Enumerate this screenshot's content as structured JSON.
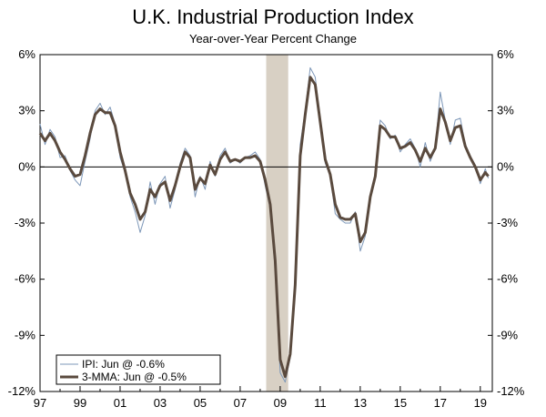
{
  "chart_data": {
    "type": "line",
    "title": "U.K. Industrial Production Index",
    "subtitle": "Year-over-Year Percent Change",
    "xlabel": "",
    "ylabel": "",
    "xlim": [
      1997,
      2019.6
    ],
    "ylim": [
      -12,
      6
    ],
    "x_ticks": [
      1997,
      1999,
      2001,
      2003,
      2005,
      2007,
      2009,
      2011,
      2013,
      2015,
      2017,
      2019
    ],
    "x_tick_labels": [
      "97",
      "99",
      "01",
      "03",
      "05",
      "07",
      "09",
      "11",
      "13",
      "15",
      "17",
      "19"
    ],
    "y_ticks": [
      6,
      3,
      0,
      -3,
      -6,
      -9,
      -12
    ],
    "y_tick_labels": [
      "6%",
      "3%",
      "0%",
      "-3%",
      "-6%",
      "-9%",
      "-12%"
    ],
    "recession_shading": [
      2008.3,
      2009.4
    ],
    "legend_position": "bottom-left",
    "grid": false,
    "series": [
      {
        "name": "IPI: Jun @ -0.6%",
        "color": "#7d97b8",
        "line_width": "thin",
        "x": [
          1997.0,
          1997.25,
          1997.5,
          1997.75,
          1998.0,
          1998.25,
          1998.5,
          1998.75,
          1999.0,
          1999.25,
          1999.5,
          1999.75,
          2000.0,
          2000.25,
          2000.5,
          2000.75,
          2001.0,
          2001.25,
          2001.5,
          2001.75,
          2002.0,
          2002.25,
          2002.5,
          2002.75,
          2003.0,
          2003.25,
          2003.5,
          2003.75,
          2004.0,
          2004.25,
          2004.5,
          2004.75,
          2005.0,
          2005.25,
          2005.5,
          2005.75,
          2006.0,
          2006.25,
          2006.5,
          2006.75,
          2007.0,
          2007.25,
          2007.5,
          2007.75,
          2008.0,
          2008.25,
          2008.5,
          2008.75,
          2009.0,
          2009.25,
          2009.5,
          2009.75,
          2010.0,
          2010.25,
          2010.5,
          2010.75,
          2011.0,
          2011.25,
          2011.5,
          2011.75,
          2012.0,
          2012.25,
          2012.5,
          2012.75,
          2013.0,
          2013.25,
          2013.5,
          2013.75,
          2014.0,
          2014.25,
          2014.5,
          2014.75,
          2015.0,
          2015.25,
          2015.5,
          2015.75,
          2016.0,
          2016.25,
          2016.5,
          2016.75,
          2017.0,
          2017.25,
          2017.5,
          2017.75,
          2018.0,
          2018.25,
          2018.5,
          2018.75,
          2019.0,
          2019.25,
          2019.4
        ],
        "values": [
          2.3,
          1.2,
          2.0,
          1.6,
          0.5,
          0.6,
          -0.2,
          -0.7,
          -1.0,
          0.3,
          1.5,
          3.0,
          3.4,
          2.8,
          3.2,
          2.3,
          0.5,
          -0.3,
          -1.6,
          -2.4,
          -3.5,
          -2.6,
          -0.8,
          -2.0,
          -0.9,
          -0.5,
          -2.2,
          -1.2,
          0.2,
          1.0,
          0.6,
          -1.6,
          -0.5,
          -1.2,
          0.3,
          -0.5,
          0.6,
          1.0,
          0.2,
          0.4,
          0.2,
          0.5,
          0.6,
          0.8,
          0.4,
          -1.0,
          -2.2,
          -5.5,
          -11.0,
          -11.5,
          -10.2,
          -6.0,
          1.2,
          3.0,
          5.3,
          4.8,
          2.5,
          0.2,
          -0.5,
          -2.5,
          -2.8,
          -3.0,
          -3.0,
          -2.4,
          -4.5,
          -3.7,
          -1.5,
          -0.5,
          2.5,
          2.2,
          1.5,
          1.7,
          0.8,
          1.2,
          1.5,
          1.0,
          0.0,
          1.3,
          0.3,
          1.0,
          4.0,
          2.5,
          1.2,
          2.5,
          2.6,
          1.2,
          0.6,
          0.1,
          -0.9,
          -0.1,
          -0.6
        ]
      },
      {
        "name": "3-MMA: Jun @ -0.5%",
        "color": "#5a4a3e",
        "line_width": "thick",
        "x": [
          1997.0,
          1997.25,
          1997.5,
          1997.75,
          1998.0,
          1998.25,
          1998.5,
          1998.75,
          1999.0,
          1999.25,
          1999.5,
          1999.75,
          2000.0,
          2000.25,
          2000.5,
          2000.75,
          2001.0,
          2001.25,
          2001.5,
          2001.75,
          2002.0,
          2002.25,
          2002.5,
          2002.75,
          2003.0,
          2003.25,
          2003.5,
          2003.75,
          2004.0,
          2004.25,
          2004.5,
          2004.75,
          2005.0,
          2005.25,
          2005.5,
          2005.75,
          2006.0,
          2006.25,
          2006.5,
          2006.75,
          2007.0,
          2007.25,
          2007.5,
          2007.75,
          2008.0,
          2008.25,
          2008.5,
          2008.75,
          2009.0,
          2009.25,
          2009.5,
          2009.75,
          2010.0,
          2010.25,
          2010.5,
          2010.75,
          2011.0,
          2011.25,
          2011.5,
          2011.75,
          2012.0,
          2012.25,
          2012.5,
          2012.75,
          2013.0,
          2013.25,
          2013.5,
          2013.75,
          2014.0,
          2014.25,
          2014.5,
          2014.75,
          2015.0,
          2015.25,
          2015.5,
          2015.75,
          2016.0,
          2016.25,
          2016.5,
          2016.75,
          2017.0,
          2017.25,
          2017.5,
          2017.75,
          2018.0,
          2018.25,
          2018.5,
          2018.75,
          2019.0,
          2019.25,
          2019.4
        ],
        "values": [
          1.8,
          1.4,
          1.8,
          1.4,
          0.8,
          0.4,
          -0.1,
          -0.5,
          -0.4,
          0.6,
          1.8,
          2.8,
          3.1,
          2.9,
          2.9,
          2.2,
          0.8,
          -0.2,
          -1.4,
          -2.0,
          -2.8,
          -2.4,
          -1.2,
          -1.6,
          -1.0,
          -0.8,
          -1.8,
          -1.0,
          0.0,
          0.8,
          0.5,
          -1.2,
          -0.6,
          -0.9,
          0.1,
          -0.4,
          0.4,
          0.8,
          0.3,
          0.4,
          0.3,
          0.5,
          0.5,
          0.6,
          0.3,
          -0.7,
          -2.0,
          -5.0,
          -10.3,
          -11.2,
          -10.0,
          -6.3,
          0.6,
          2.8,
          4.8,
          4.4,
          2.4,
          0.4,
          -0.4,
          -2.0,
          -2.7,
          -2.8,
          -2.8,
          -2.5,
          -4.0,
          -3.5,
          -1.6,
          -0.5,
          2.2,
          2.0,
          1.6,
          1.6,
          1.0,
          1.1,
          1.3,
          0.9,
          0.3,
          1.0,
          0.5,
          1.0,
          3.1,
          2.4,
          1.4,
          2.1,
          2.2,
          1.1,
          0.5,
          0.0,
          -0.7,
          -0.3,
          -0.5
        ]
      }
    ]
  }
}
